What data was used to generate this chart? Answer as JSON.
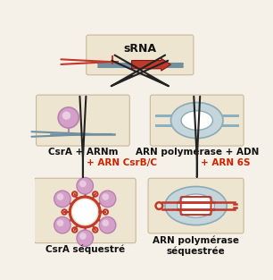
{
  "bg_color": "#f5f0e8",
  "box_color": "#ede5d0",
  "box_edge": "#c8b89a",
  "dark_red": "#c0392b",
  "red_label": "#cc2200",
  "blue_gray": "#7090a0",
  "pink": "#d4a0c8",
  "pink_dark": "#b880b0",
  "gray_blue": "#8ab0c0",
  "light_gray": "#c5d5dc",
  "arrow_color": "#222222",
  "text_color": "#111111",
  "srna_title": "sRNA",
  "label_left_top": "CsrA + ARNm",
  "label_right_top": "ARN polymérase + ADN",
  "label_left_mid": "+ ARN CsrB/C",
  "label_right_mid": "+ ARN 6S",
  "label_left_bot": "CsrA séquestré",
  "label_right_bot": "ARN polymérase\nséquestrée"
}
